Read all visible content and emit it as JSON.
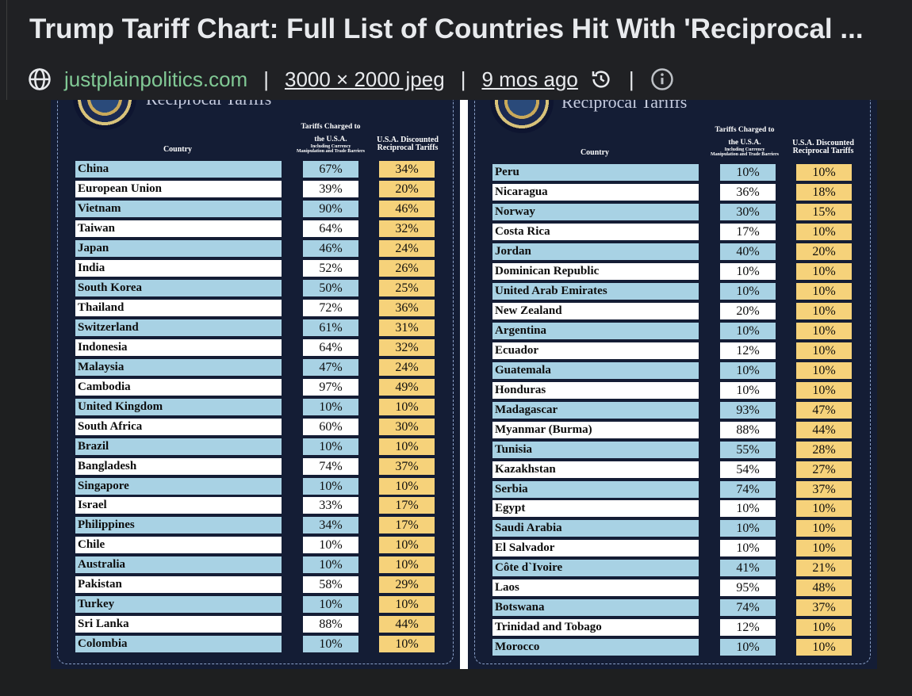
{
  "header": {
    "title": "Trump Tariff Chart: Full List of Countries Hit With 'Reciprocal ...",
    "site": "justplainpolitics.com",
    "dimensions": "3000 × 2000 jpeg",
    "age": "9 mos ago",
    "separator": "|"
  },
  "table": {
    "title": "Reciprocal Tariffs",
    "col_country": "Country",
    "col_charged": "Tariffs Charged to the U.S.A.",
    "col_charged_note": "Including Currency Manipulation and Trade Barriers",
    "col_discounted": "U.S.A. Discounted Reciprocal Tariffs",
    "left_rows": [
      {
        "country": "China",
        "charged": "67%",
        "discounted": "34%"
      },
      {
        "country": "European Union",
        "charged": "39%",
        "discounted": "20%"
      },
      {
        "country": "Vietnam",
        "charged": "90%",
        "discounted": "46%"
      },
      {
        "country": "Taiwan",
        "charged": "64%",
        "discounted": "32%"
      },
      {
        "country": "Japan",
        "charged": "46%",
        "discounted": "24%"
      },
      {
        "country": "India",
        "charged": "52%",
        "discounted": "26%"
      },
      {
        "country": "South Korea",
        "charged": "50%",
        "discounted": "25%"
      },
      {
        "country": "Thailand",
        "charged": "72%",
        "discounted": "36%"
      },
      {
        "country": "Switzerland",
        "charged": "61%",
        "discounted": "31%"
      },
      {
        "country": "Indonesia",
        "charged": "64%",
        "discounted": "32%"
      },
      {
        "country": "Malaysia",
        "charged": "47%",
        "discounted": "24%"
      },
      {
        "country": "Cambodia",
        "charged": "97%",
        "discounted": "49%"
      },
      {
        "country": "United Kingdom",
        "charged": "10%",
        "discounted": "10%"
      },
      {
        "country": "South Africa",
        "charged": "60%",
        "discounted": "30%"
      },
      {
        "country": "Brazil",
        "charged": "10%",
        "discounted": "10%"
      },
      {
        "country": "Bangladesh",
        "charged": "74%",
        "discounted": "37%"
      },
      {
        "country": "Singapore",
        "charged": "10%",
        "discounted": "10%"
      },
      {
        "country": "Israel",
        "charged": "33%",
        "discounted": "17%"
      },
      {
        "country": "Philippines",
        "charged": "34%",
        "discounted": "17%"
      },
      {
        "country": "Chile",
        "charged": "10%",
        "discounted": "10%"
      },
      {
        "country": "Australia",
        "charged": "10%",
        "discounted": "10%"
      },
      {
        "country": "Pakistan",
        "charged": "58%",
        "discounted": "29%"
      },
      {
        "country": "Turkey",
        "charged": "10%",
        "discounted": "10%"
      },
      {
        "country": "Sri Lanka",
        "charged": "88%",
        "discounted": "44%"
      },
      {
        "country": "Colombia",
        "charged": "10%",
        "discounted": "10%"
      }
    ],
    "right_rows": [
      {
        "country": "Peru",
        "charged": "10%",
        "discounted": "10%"
      },
      {
        "country": "Nicaragua",
        "charged": "36%",
        "discounted": "18%"
      },
      {
        "country": "Norway",
        "charged": "30%",
        "discounted": "15%"
      },
      {
        "country": "Costa Rica",
        "charged": "17%",
        "discounted": "10%"
      },
      {
        "country": "Jordan",
        "charged": "40%",
        "discounted": "20%"
      },
      {
        "country": "Dominican Republic",
        "charged": "10%",
        "discounted": "10%"
      },
      {
        "country": "United Arab Emirates",
        "charged": "10%",
        "discounted": "10%"
      },
      {
        "country": "New Zealand",
        "charged": "20%",
        "discounted": "10%"
      },
      {
        "country": "Argentina",
        "charged": "10%",
        "discounted": "10%"
      },
      {
        "country": "Ecuador",
        "charged": "12%",
        "discounted": "10%"
      },
      {
        "country": "Guatemala",
        "charged": "10%",
        "discounted": "10%"
      },
      {
        "country": "Honduras",
        "charged": "10%",
        "discounted": "10%"
      },
      {
        "country": "Madagascar",
        "charged": "93%",
        "discounted": "47%"
      },
      {
        "country": "Myanmar (Burma)",
        "charged": "88%",
        "discounted": "44%"
      },
      {
        "country": "Tunisia",
        "charged": "55%",
        "discounted": "28%"
      },
      {
        "country": "Kazakhstan",
        "charged": "54%",
        "discounted": "27%"
      },
      {
        "country": "Serbia",
        "charged": "74%",
        "discounted": "37%"
      },
      {
        "country": "Egypt",
        "charged": "10%",
        "discounted": "10%"
      },
      {
        "country": "Saudi Arabia",
        "charged": "10%",
        "discounted": "10%"
      },
      {
        "country": "El Salvador",
        "charged": "10%",
        "discounted": "10%"
      },
      {
        "country": "Côte d`Ivoire",
        "charged": "41%",
        "discounted": "21%"
      },
      {
        "country": "Laos",
        "charged": "95%",
        "discounted": "48%"
      },
      {
        "country": "Botswana",
        "charged": "74%",
        "discounted": "37%"
      },
      {
        "country": "Trinidad and Tobago",
        "charged": "12%",
        "discounted": "10%"
      },
      {
        "country": "Morocco",
        "charged": "10%",
        "discounted": "10%"
      }
    ]
  },
  "colors": {
    "row_blue": "#a8d2e4",
    "row_white": "#ffffff",
    "discount_yellow": "#f6d27a",
    "panel_navy": "#141d35",
    "site_green": "#81c995"
  },
  "icons": {
    "site": "globe-icon",
    "history": "history-icon",
    "info": "info-icon"
  }
}
